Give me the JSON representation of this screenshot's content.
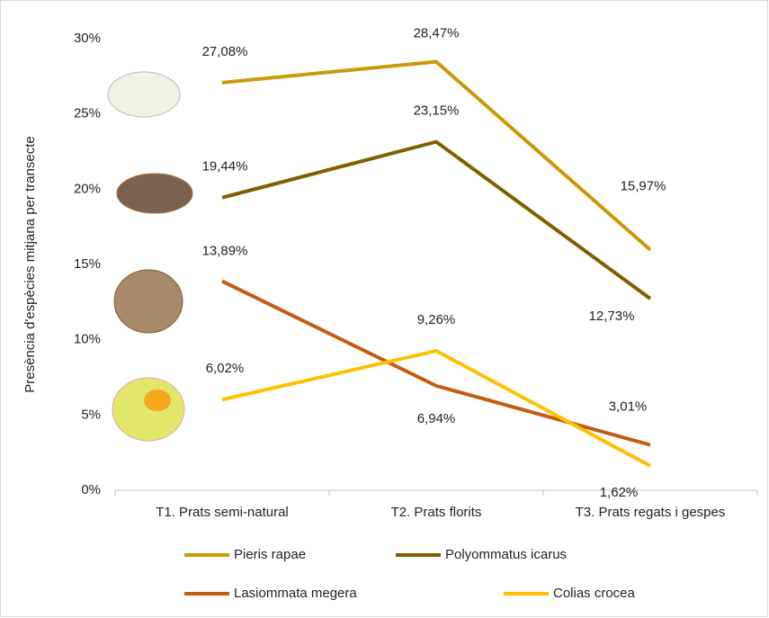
{
  "chart_data": {
    "type": "line",
    "y_label": "Presència d'espècies mitjana per transecte",
    "categories": [
      "T1. Prats semi-natural",
      "T2. Prats florits",
      "T3. Prats regats i gespes"
    ],
    "series": [
      {
        "name": "Pieris rapae",
        "color": "#c99a06",
        "values": [
          27.08,
          28.47,
          15.97
        ],
        "value_labels": [
          "27,08%",
          "28,47%",
          "15,97%"
        ]
      },
      {
        "name": "Polyommatus icarus",
        "color": "#7f6000",
        "values": [
          19.44,
          23.15,
          12.73
        ],
        "value_labels": [
          "19,44%",
          "23,15%",
          "12,73%"
        ]
      },
      {
        "name": "Lasiommata megera",
        "color": "#c55a11",
        "values": [
          13.89,
          6.94,
          3.01
        ],
        "value_labels": [
          "13,89%",
          "6,94%",
          "3,01%"
        ]
      },
      {
        "name": "Colias crocea",
        "color": "#ffc000",
        "values": [
          6.02,
          9.26,
          1.62
        ],
        "value_labels": [
          "6,02%",
          "9,26%",
          "1,62%"
        ]
      }
    ],
    "ylim": [
      0,
      30
    ],
    "yticks": [
      {
        "value": 0,
        "label": "0%"
      },
      {
        "value": 5,
        "label": "5%"
      },
      {
        "value": 10,
        "label": "10%"
      },
      {
        "value": 15,
        "label": "15%"
      },
      {
        "value": 20,
        "label": "20%"
      },
      {
        "value": 25,
        "label": "25%"
      },
      {
        "value": 30,
        "label": "30%"
      }
    ],
    "grid": false
  }
}
